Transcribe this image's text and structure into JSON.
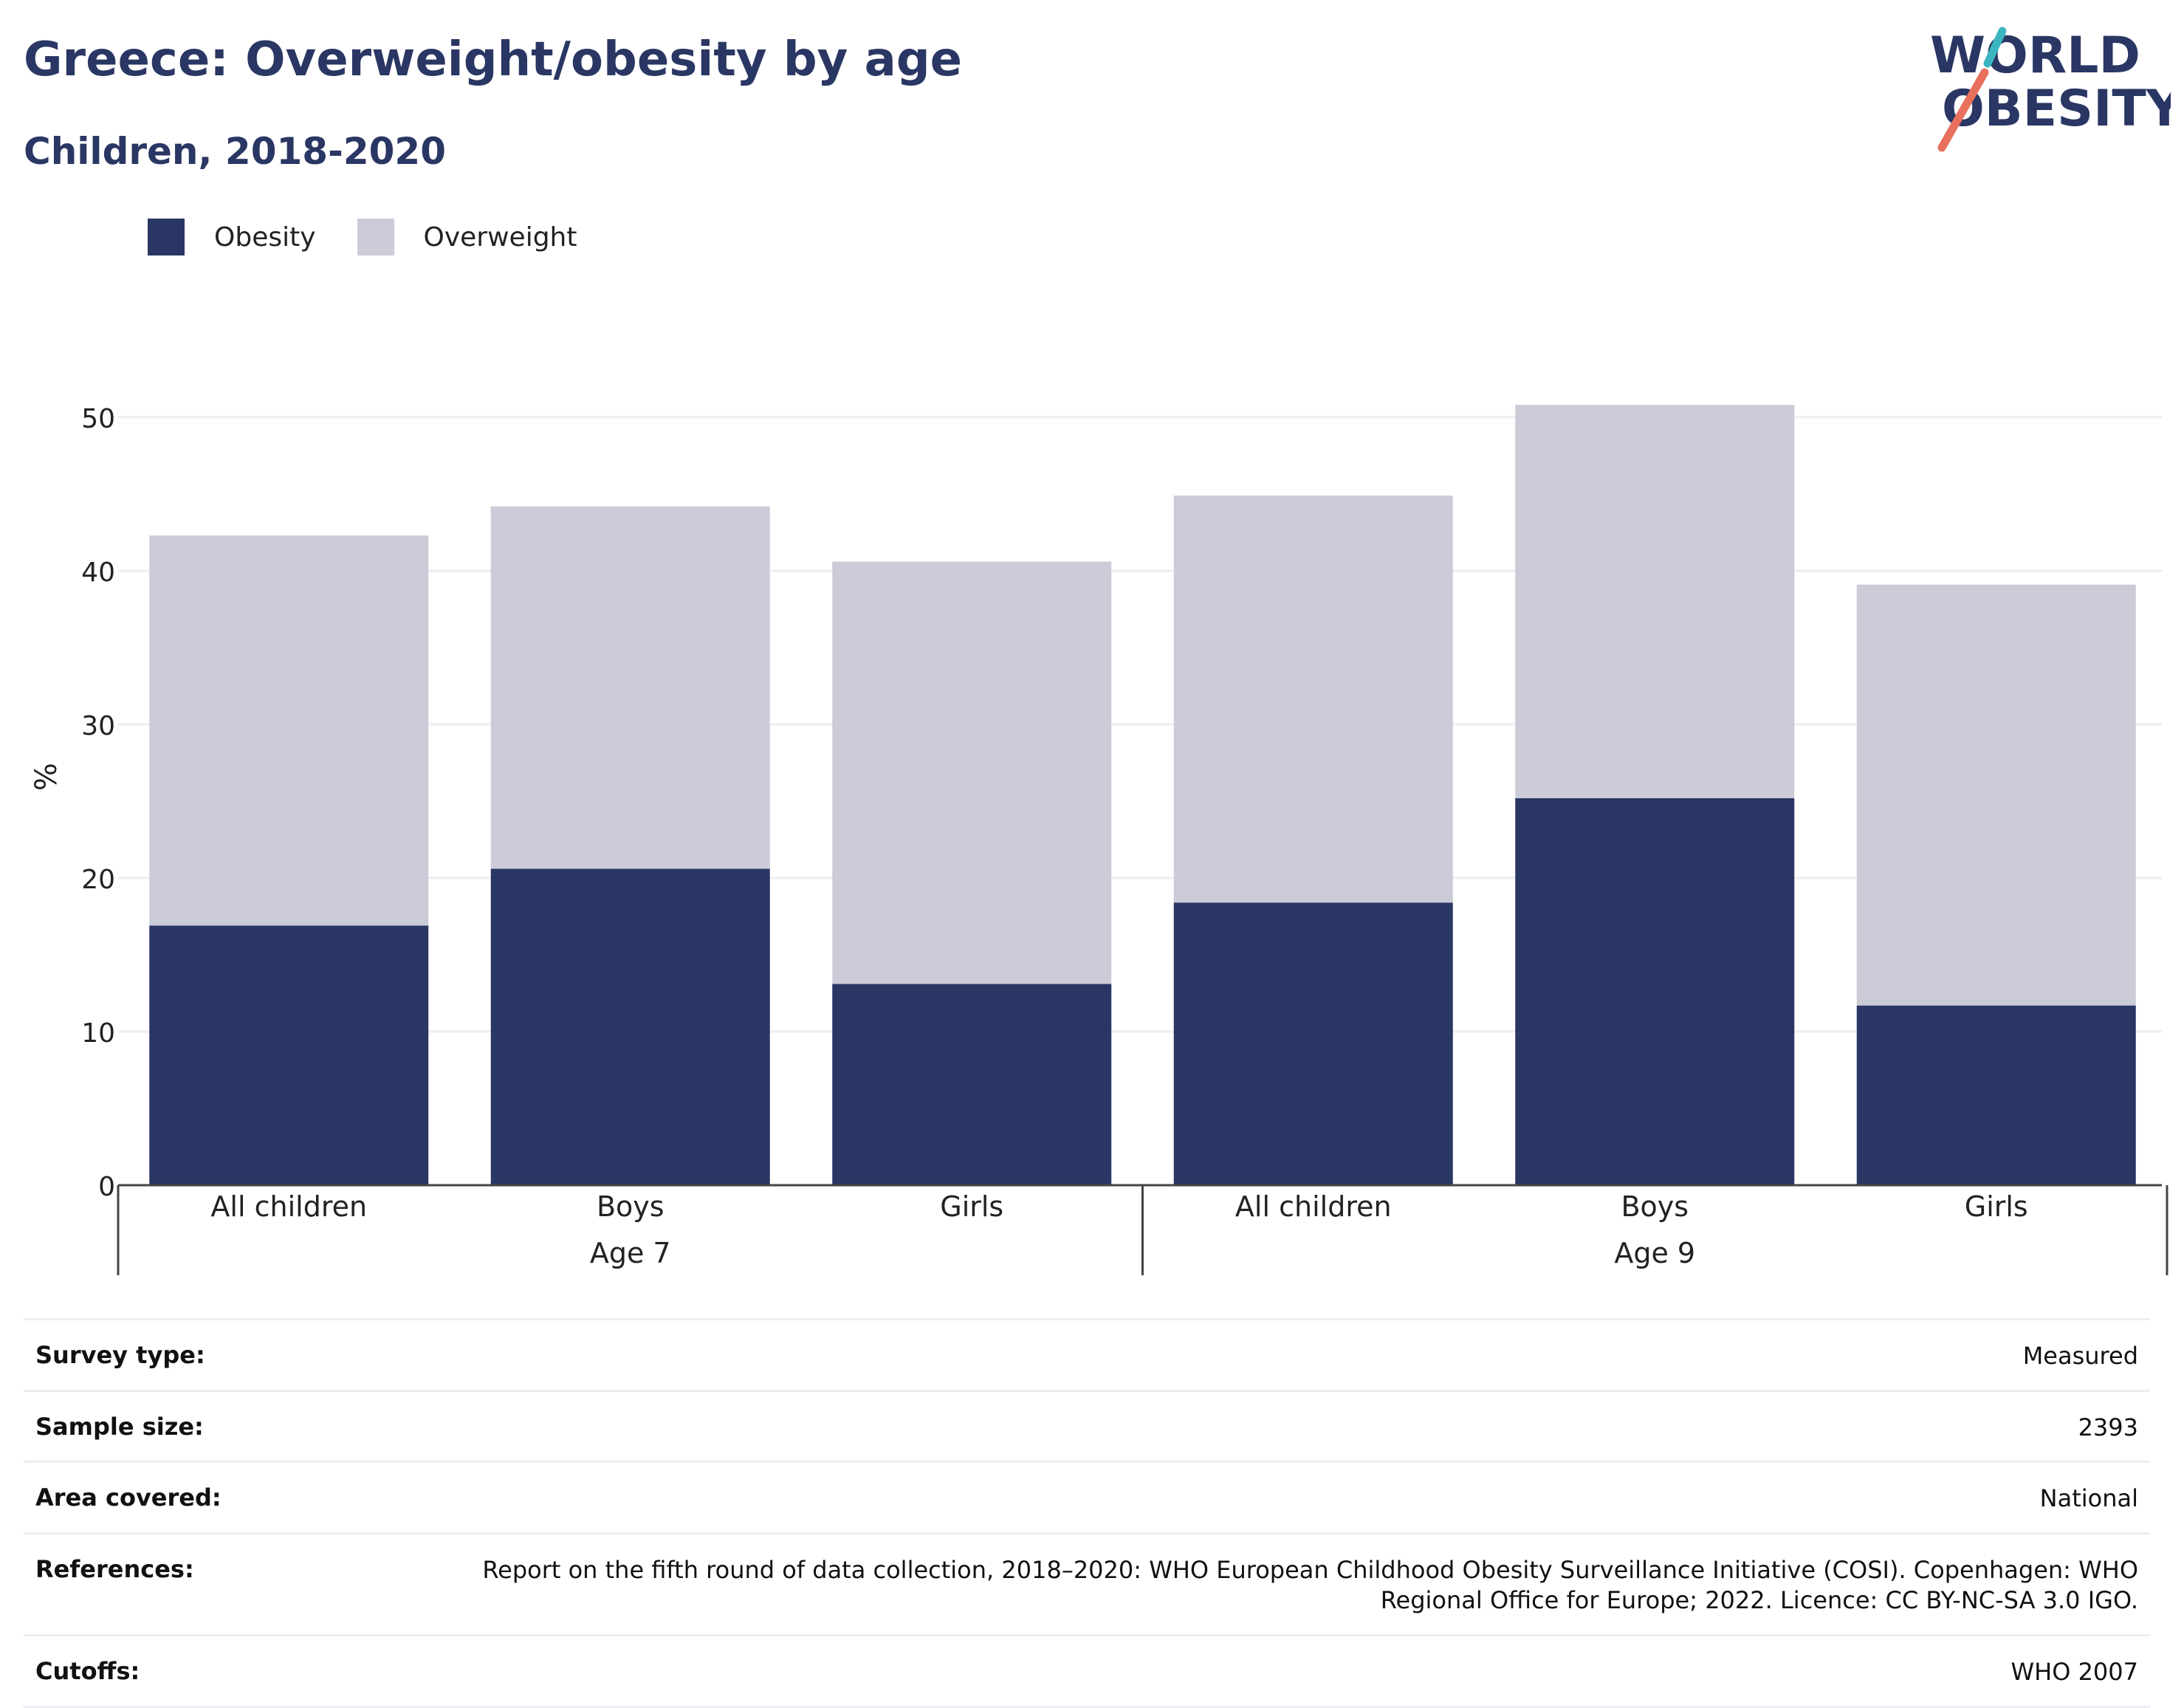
{
  "colors": {
    "title": "#2a3663",
    "obesity": "#2a3663",
    "overweight": "#cbccd8",
    "grid": "#eceef3",
    "axis": "#444444",
    "logo_teal": "#3bb6c0",
    "logo_coral": "#e8705d"
  },
  "title": "Greece: Overweight/obesity by age",
  "subtitle": "Children, 2018-2020",
  "logo": {
    "line1": "WORLD",
    "line2": "OBESITY"
  },
  "legend": {
    "items": [
      "Obesity",
      "Overweight"
    ]
  },
  "chart_data": {
    "type": "bar",
    "stacked": true,
    "ylabel": "%",
    "xlabel": "",
    "ylim": [
      0,
      55
    ],
    "yticks": [
      0,
      10,
      20,
      30,
      40,
      50
    ],
    "grid": true,
    "legend_position": "top-left",
    "groups": [
      {
        "name": "Age 7",
        "categories": [
          "All children",
          "Boys",
          "Girls"
        ]
      },
      {
        "name": "Age 9",
        "categories": [
          "All children",
          "Boys",
          "Girls"
        ]
      }
    ],
    "series": [
      {
        "name": "Obesity",
        "values": [
          16.9,
          20.6,
          13.1,
          18.4,
          25.2,
          11.7
        ]
      },
      {
        "name": "Overweight",
        "values": [
          25.4,
          23.6,
          27.5,
          26.5,
          25.6,
          27.4
        ]
      }
    ]
  },
  "meta": {
    "rows": [
      {
        "label": "Survey type:",
        "value": "Measured"
      },
      {
        "label": "Sample size:",
        "value": "2393"
      },
      {
        "label": "Area covered:",
        "value": "National"
      },
      {
        "label": "References:",
        "value": "Report on the fifth round of data collection, 2018–2020: WHO European Childhood Obesity Surveillance Initiative (COSI). Copenhagen: WHO Regional Office for Europe; 2022. Licence: CC BY-NC-SA 3.0 IGO."
      },
      {
        "label": "Cutoffs:",
        "value": "WHO 2007"
      }
    ]
  }
}
